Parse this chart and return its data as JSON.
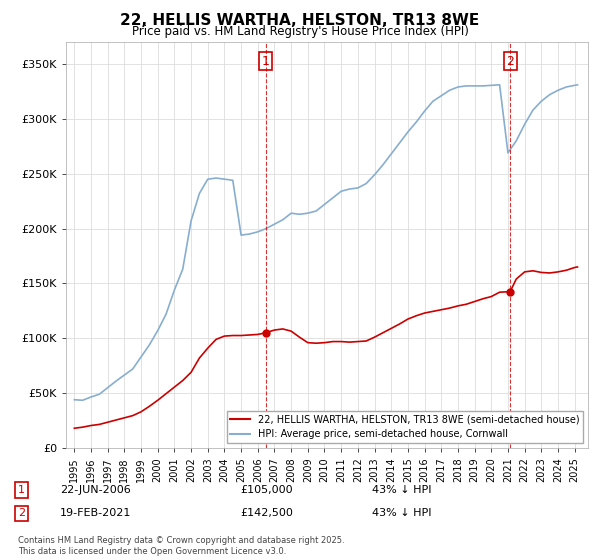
{
  "title": "22, HELLIS WARTHA, HELSTON, TR13 8WE",
  "subtitle": "Price paid vs. HM Land Registry's House Price Index (HPI)",
  "legend_line1": "22, HELLIS WARTHA, HELSTON, TR13 8WE (semi-detached house)",
  "legend_line2": "HPI: Average price, semi-detached house, Cornwall",
  "footnote": "Contains HM Land Registry data © Crown copyright and database right 2025.\nThis data is licensed under the Open Government Licence v3.0.",
  "marker1_date": "22-JUN-2006",
  "marker1_price": 105000,
  "marker1_pct": "43% ↓ HPI",
  "marker1_year": 2006.47,
  "marker2_date": "19-FEB-2021",
  "marker2_price": 142500,
  "marker2_pct": "43% ↓ HPI",
  "marker2_year": 2021.13,
  "ylim": [
    0,
    370000
  ],
  "xlim_start": 1994.5,
  "xlim_end": 2025.8,
  "hpi_color": "#87AECE",
  "price_color": "#CC0000",
  "marker_color": "#CC0000",
  "grid_color": "#DDDDDD",
  "background_color": "#FFFFFF",
  "yticks": [
    0,
    50000,
    100000,
    150000,
    200000,
    250000,
    300000,
    350000
  ],
  "xticks": [
    1995,
    1996,
    1997,
    1998,
    1999,
    2000,
    2001,
    2002,
    2003,
    2004,
    2005,
    2006,
    2007,
    2008,
    2009,
    2010,
    2011,
    2012,
    2013,
    2014,
    2015,
    2016,
    2017,
    2018,
    2019,
    2020,
    2021,
    2022,
    2023,
    2024,
    2025
  ],
  "hpi_years": [
    1995.0,
    1995.5,
    1996.0,
    1996.5,
    1997.0,
    1997.5,
    1998.0,
    1998.5,
    1999.0,
    1999.5,
    2000.0,
    2000.5,
    2001.0,
    2001.5,
    2002.0,
    2002.5,
    2003.0,
    2003.5,
    2004.0,
    2004.5,
    2005.0,
    2005.5,
    2006.0,
    2006.5,
    2007.0,
    2007.5,
    2008.0,
    2008.5,
    2009.0,
    2009.5,
    2010.0,
    2010.5,
    2011.0,
    2011.5,
    2012.0,
    2012.5,
    2013.0,
    2013.5,
    2014.0,
    2014.5,
    2015.0,
    2015.5,
    2016.0,
    2016.5,
    2017.0,
    2017.5,
    2018.0,
    2018.5,
    2019.0,
    2019.5,
    2020.0,
    2020.5,
    2021.0,
    2021.5,
    2022.0,
    2022.5,
    2023.0,
    2023.5,
    2024.0,
    2024.5,
    2025.0,
    2025.17
  ],
  "hpi_values": [
    44000,
    43500,
    46500,
    49000,
    55000,
    61000,
    66500,
    72000,
    83000,
    94000,
    107000,
    122000,
    144000,
    163000,
    207000,
    232000,
    245000,
    246000,
    245000,
    244000,
    194000,
    195000,
    197000,
    200000,
    204000,
    208000,
    214000,
    213000,
    214000,
    216000,
    222000,
    228000,
    234000,
    236000,
    237000,
    241000,
    249000,
    258000,
    268000,
    278000,
    288000,
    297000,
    307000,
    316000,
    321000,
    326000,
    329000,
    330000,
    330000,
    330000,
    330500,
    331000,
    269000,
    280000,
    295000,
    308000,
    316000,
    322000,
    326000,
    329000,
    330500,
    331000
  ],
  "price_years": [
    1995.0,
    1995.5,
    1996.0,
    1996.5,
    1997.0,
    1997.5,
    1998.0,
    1998.5,
    1999.0,
    1999.5,
    2000.0,
    2000.5,
    2001.0,
    2001.5,
    2002.0,
    2002.5,
    2003.0,
    2003.5,
    2004.0,
    2004.5,
    2005.0,
    2005.5,
    2006.0,
    2006.47,
    2007.0,
    2007.5,
    2008.0,
    2008.5,
    2009.0,
    2009.5,
    2010.0,
    2010.5,
    2011.0,
    2011.5,
    2012.0,
    2012.5,
    2013.0,
    2013.5,
    2014.0,
    2014.5,
    2015.0,
    2015.5,
    2016.0,
    2016.5,
    2017.0,
    2017.5,
    2018.0,
    2018.5,
    2019.0,
    2019.5,
    2020.0,
    2020.5,
    2021.13,
    2021.5,
    2022.0,
    2022.5,
    2023.0,
    2023.5,
    2024.0,
    2024.5,
    2025.0,
    2025.17
  ],
  "price_values": [
    18000,
    19000,
    20500,
    21500,
    23500,
    25500,
    27500,
    29500,
    33000,
    38000,
    43500,
    49500,
    55500,
    61500,
    69000,
    82000,
    91000,
    99000,
    102000,
    102500,
    102500,
    103000,
    103500,
    105000,
    107500,
    108500,
    106500,
    101000,
    96000,
    95500,
    96000,
    97000,
    97000,
    96500,
    97000,
    97500,
    101000,
    105000,
    109000,
    113000,
    117500,
    120500,
    123000,
    124500,
    126000,
    127500,
    129500,
    131000,
    133500,
    136000,
    138000,
    142000,
    142500,
    154000,
    160500,
    161500,
    160000,
    159500,
    160500,
    162000,
    164500,
    165000
  ]
}
